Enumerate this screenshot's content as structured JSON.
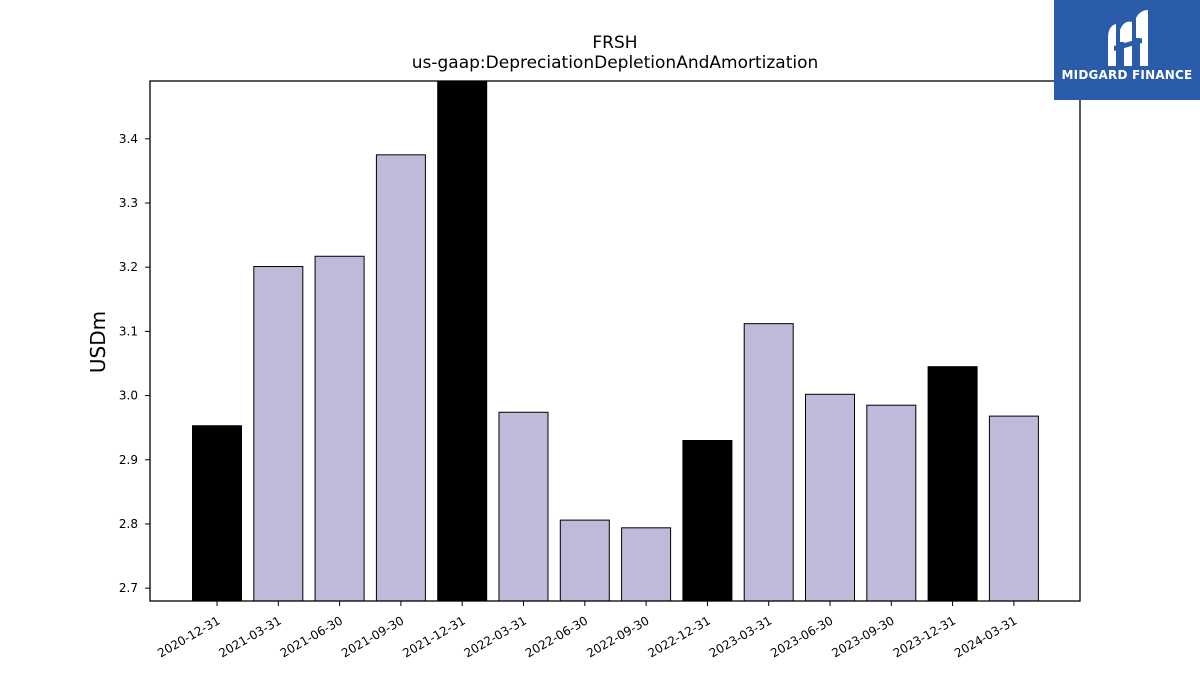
{
  "chart_data": {
    "type": "bar",
    "title": "FRSH",
    "subtitle": "us-gaap:DepreciationDepletionAndAmortization",
    "xlabel": "",
    "ylabel": "USDm",
    "ylim": [
      2.68,
      3.49
    ],
    "yticks": [
      "2.7",
      "2.8",
      "2.9",
      "3.0",
      "3.1",
      "3.2",
      "3.3",
      "3.4"
    ],
    "grid": false,
    "categories": [
      "2020-12-31",
      "2021-03-31",
      "2021-06-30",
      "2021-09-30",
      "2021-12-31",
      "2022-03-31",
      "2022-06-30",
      "2022-09-30",
      "2022-12-31",
      "2023-03-31",
      "2023-06-30",
      "2023-09-30",
      "2023-12-31",
      "2024-03-31"
    ],
    "values": [
      2.953,
      3.201,
      3.217,
      3.375,
      3.49,
      2.974,
      2.806,
      2.794,
      2.93,
      3.112,
      3.002,
      2.985,
      3.045,
      2.968
    ],
    "fiscal_year_end": [
      true,
      false,
      false,
      false,
      true,
      false,
      false,
      false,
      true,
      false,
      false,
      false,
      true,
      false
    ],
    "colors": {
      "quarter": "#bebbda",
      "year_end": "#000000",
      "edge": "#000000"
    }
  },
  "logo": {
    "text": "MIDGARD FINANCE",
    "background": "#2a5caa"
  }
}
